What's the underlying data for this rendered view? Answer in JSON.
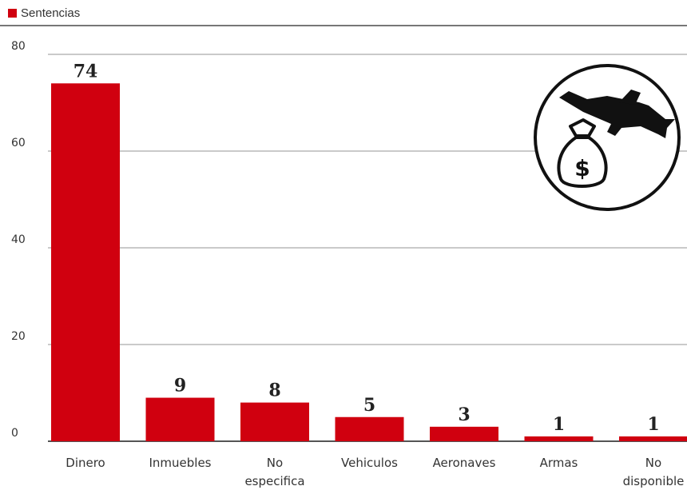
{
  "legend": {
    "label": "Sentencias"
  },
  "colors": {
    "bar": "#d0000f",
    "grid": "#aaaaaa",
    "axis": "#555555"
  },
  "icon": {
    "name": "airplane-money-bag-icon"
  },
  "chart_data": {
    "type": "bar",
    "categories": [
      [
        "Dinero"
      ],
      [
        "Inmuebles"
      ],
      [
        "No",
        "especifica"
      ],
      [
        "Vehiculos"
      ],
      [
        "Aeronaves"
      ],
      [
        "Armas"
      ],
      [
        "No",
        "disponible"
      ]
    ],
    "series": [
      {
        "name": "Sentencias",
        "values": [
          74,
          9,
          8,
          5,
          3,
          1,
          1
        ]
      }
    ],
    "data_labels": [
      "74",
      "9",
      "8",
      "5",
      "3",
      "1",
      "1"
    ],
    "yticks": [
      "0",
      "20",
      "40",
      "60",
      "80"
    ],
    "ylim": [
      0,
      80
    ],
    "grid": true,
    "legend_position": "top-left"
  }
}
